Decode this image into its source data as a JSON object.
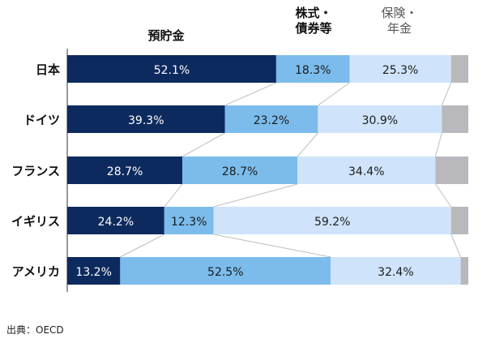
{
  "legend": {
    "deposits": "預貯金",
    "stocks_line1": "株式・",
    "stocks_line2": "債券等",
    "insurance_line1": "保険・",
    "insurance_line2": "年金"
  },
  "source": "出典：OECD",
  "colors": {
    "deposits": "#0d2a5e",
    "stocks": "#7bbcec",
    "insurance": "#cfe4fa",
    "other": "#b9b9bd",
    "connector": "#bfbfbf"
  },
  "chart_data": {
    "type": "bar",
    "orientation": "horizontal",
    "stacked": true,
    "categories": [
      "日本",
      "ドイツ",
      "フランス",
      "イギリス",
      "アメリカ"
    ],
    "series": [
      {
        "name": "預貯金",
        "values": [
          52.1,
          39.3,
          28.7,
          24.2,
          13.2
        ]
      },
      {
        "name": "株式・債券等",
        "values": [
          18.3,
          23.2,
          28.7,
          12.3,
          52.5
        ]
      },
      {
        "name": "保険・年金",
        "values": [
          25.3,
          30.9,
          34.4,
          59.2,
          32.4
        ]
      },
      {
        "values": [
          4.3,
          6.6,
          8.2,
          4.3,
          1.9
        ]
      }
    ],
    "labels": [
      [
        "52.1%",
        "18.3%",
        "25.3%"
      ],
      [
        "39.3%",
        "23.2%",
        "30.9%"
      ],
      [
        "28.7%",
        "28.7%",
        "34.4%"
      ],
      [
        "24.2%",
        "12.3%",
        "59.2%"
      ],
      [
        "13.2%",
        "52.5%",
        "32.4%"
      ]
    ],
    "xlim": [
      0,
      100
    ],
    "legend_position": "top"
  }
}
